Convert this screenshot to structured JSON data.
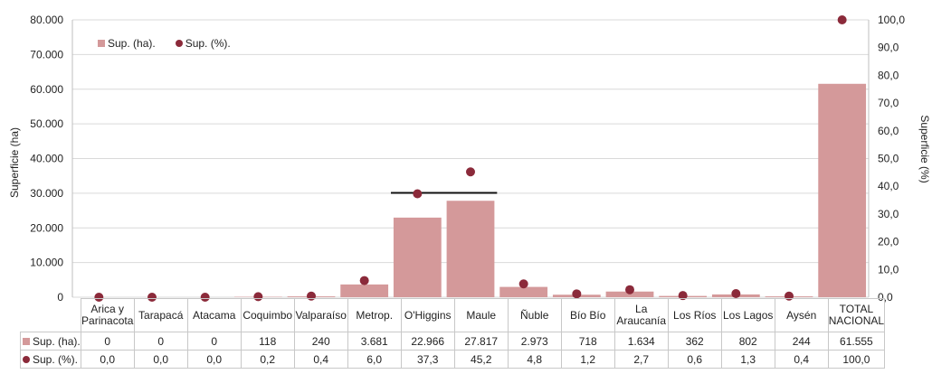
{
  "chart_data": {
    "type": "bar",
    "categories": [
      "Arica y Parinacota",
      "Tarapacá",
      "Atacama",
      "Coquimbo",
      "Valparaíso",
      "Metrop.",
      "O'Higgins",
      "Maule",
      "Ñuble",
      "Bío Bío",
      "La Araucanía",
      "Los Ríos",
      "Los Lagos",
      "Aysén",
      "TOTAL NACIONAL"
    ],
    "category_lines": [
      [
        "Arica y",
        "Parinacota"
      ],
      [
        "Tarapacá"
      ],
      [
        "Atacama"
      ],
      [
        "Coquimbo"
      ],
      [
        "Valparaíso"
      ],
      [
        "Metrop."
      ],
      [
        "O'Higgins"
      ],
      [
        "Maule"
      ],
      [
        "Ñuble"
      ],
      [
        "Bío Bío"
      ],
      [
        "La",
        "Araucanía"
      ],
      [
        "Los Ríos"
      ],
      [
        "Los Lagos"
      ],
      [
        "Aysén"
      ],
      [
        "TOTAL",
        "NACIONAL"
      ]
    ],
    "series": [
      {
        "name": "Sup. (ha).",
        "type": "bar",
        "axis": "left",
        "values": [
          0,
          0,
          0,
          118,
          240,
          3681,
          22966,
          27817,
          2973,
          718,
          1634,
          362,
          802,
          244,
          61555
        ],
        "labels": [
          "0",
          "0",
          "0",
          "118",
          "240",
          "3.681",
          "22.966",
          "27.817",
          "2.973",
          "718",
          "1.634",
          "362",
          "802",
          "244",
          "61.555"
        ]
      },
      {
        "name": "Sup. (%).",
        "type": "scatter",
        "axis": "right",
        "values": [
          0.0,
          0.0,
          0.0,
          0.2,
          0.4,
          6.0,
          37.3,
          45.2,
          4.8,
          1.2,
          2.7,
          0.6,
          1.3,
          0.4,
          100.0
        ],
        "labels": [
          "0,0",
          "0,0",
          "0,0",
          "0,2",
          "0,4",
          "6,0",
          "37,3",
          "45,2",
          "4,8",
          "1,2",
          "2,7",
          "0,6",
          "1,3",
          "0,4",
          "100,0"
        ]
      }
    ],
    "ylabel_left": "Superficie (ha)",
    "ylabel_right": "Superficie (%)",
    "ylim_left": [
      0,
      80000
    ],
    "ylim_right": [
      0,
      100
    ],
    "yticks_left": [
      "0",
      "10.000",
      "20.000",
      "30.000",
      "40.000",
      "50.000",
      "60.000",
      "70.000",
      "80.000"
    ],
    "yticks_right": [
      "0,0",
      "10,0",
      "20,0",
      "30,0",
      "40,0",
      "50,0",
      "60,0",
      "70,0",
      "80,0",
      "90,0",
      "100,0"
    ],
    "grid": true,
    "legend_position": "top-left",
    "colors": {
      "bar": "#d4999a",
      "marker": "#8b2a3a",
      "grid": "#d9d9d9",
      "bracket": "#111111"
    }
  }
}
